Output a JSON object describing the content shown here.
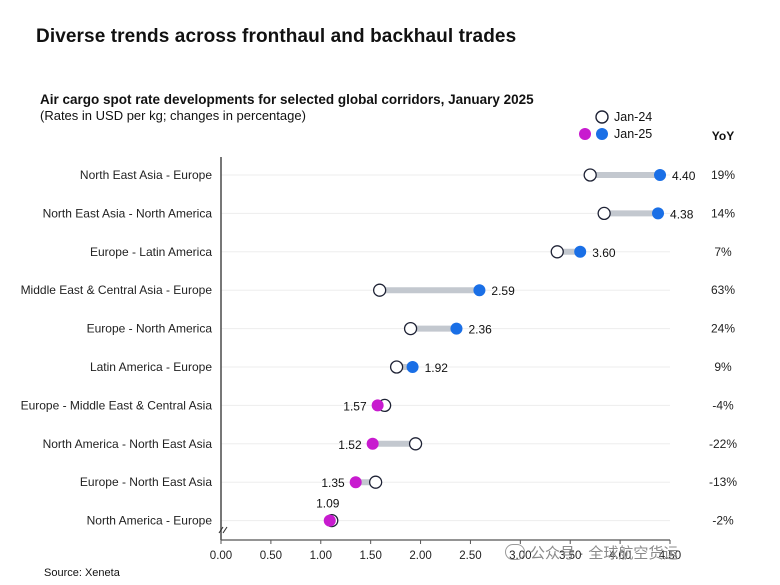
{
  "page": {
    "main_title": "Diverse trends across fronthaul and backhaul trades",
    "source": "Source: Xeneta",
    "watermark": "公众号 · 全球航空货运"
  },
  "chart_data": {
    "type": "dumbbell",
    "title": "Air cargo spot rate developments for selected global corridors, January 2025",
    "subtitle": "(Rates in USD per kg; changes in percentage)",
    "xlim": [
      0,
      4.5
    ],
    "x_ticks": [
      "0.00",
      "0.50",
      "1.00",
      "1.50",
      "2.00",
      "2.50",
      "3.00",
      "3.50",
      "4.00",
      "4.50"
    ],
    "grid": true,
    "legend_placement": "top-right",
    "legend": [
      {
        "name": "Jan-24",
        "style": "hollow"
      },
      {
        "name": "Jan-25",
        "style": "filled"
      }
    ],
    "yoy_header": "YoY",
    "colors": {
      "increase": "#1a6fe6",
      "decrease": "#c81bcf",
      "connector": "#c3c8cf",
      "axis": "#555555"
    },
    "rows": [
      {
        "corridor": "North East Asia - Europe",
        "jan24": 3.7,
        "jan25": 4.4,
        "label": "4.40",
        "yoy": "19%"
      },
      {
        "corridor": "North East Asia - North America",
        "jan24": 3.84,
        "jan25": 4.38,
        "label": "4.38",
        "yoy": "14%"
      },
      {
        "corridor": "Europe - Latin America",
        "jan24": 3.37,
        "jan25": 3.6,
        "label": "3.60",
        "yoy": "7%"
      },
      {
        "corridor": "Middle East & Central Asia - Europe",
        "jan24": 1.59,
        "jan25": 2.59,
        "label": "2.59",
        "yoy": "63%"
      },
      {
        "corridor": "Europe - North America",
        "jan24": 1.9,
        "jan25": 2.36,
        "label": "2.36",
        "yoy": "24%"
      },
      {
        "corridor": "Latin America - Europe",
        "jan24": 1.76,
        "jan25": 1.92,
        "label": "1.92",
        "yoy": "9%"
      },
      {
        "corridor": "Europe - Middle East & Central Asia",
        "jan24": 1.64,
        "jan25": 1.57,
        "label": "1.57",
        "yoy": "-4%"
      },
      {
        "corridor": "North America - North East Asia",
        "jan24": 1.95,
        "jan25": 1.52,
        "label": "1.52",
        "yoy": "-22%"
      },
      {
        "corridor": "Europe - North East Asia",
        "jan24": 1.55,
        "jan25": 1.35,
        "label": "1.35",
        "yoy": "-13%"
      },
      {
        "corridor": "North America - Europe",
        "jan24": 1.11,
        "jan25": 1.09,
        "label": "1.09",
        "yoy": "-2%"
      }
    ]
  }
}
